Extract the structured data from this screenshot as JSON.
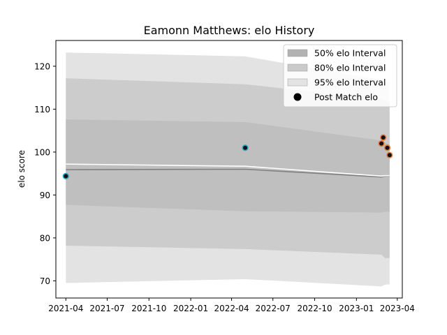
{
  "chart_data": {
    "type": "line",
    "title": "Eamonn Matthews: elo History",
    "xlabel": "",
    "ylabel": "elo score",
    "xlim": [
      "2021-03-10",
      "2023-04-12"
    ],
    "ylim": [
      66,
      126
    ],
    "x_ticks": [
      "2021-04",
      "2021-07",
      "2021-10",
      "2022-01",
      "2022-04",
      "2022-07",
      "2022-10",
      "2023-01",
      "2023-04"
    ],
    "y_ticks": [
      70,
      80,
      90,
      100,
      110,
      120
    ],
    "grid": false,
    "legend_position": "top-right",
    "intervals": [
      {
        "name": "95% elo Interval",
        "color": "#e3e3e3",
        "x": [
          "2021-04-01",
          "2022-05-01",
          "2023-02-25",
          "2023-03-05",
          "2023-03-15"
        ],
        "upper": [
          123.2,
          122.3,
          116.8,
          116.5,
          116.0
        ],
        "lower": [
          69.5,
          70.4,
          68.7,
          69.1,
          69.2
        ]
      },
      {
        "name": "80% elo Interval",
        "color": "#cccccc",
        "x": [
          "2021-04-01",
          "2022-05-01",
          "2023-02-25",
          "2023-03-05",
          "2023-03-15"
        ],
        "upper": [
          117.2,
          115.8,
          112.3,
          112.0,
          111.6
        ],
        "lower": [
          78.2,
          77.4,
          76.1,
          75.3,
          75.3
        ]
      },
      {
        "name": "50% elo Interval",
        "color": "#bfbfbf",
        "x": [
          "2021-04-01",
          "2022-05-01",
          "2023-02-25",
          "2023-03-05",
          "2023-03-15"
        ],
        "upper": [
          107.6,
          107.0,
          102.7,
          102.2,
          101.8
        ],
        "lower": [
          87.7,
          86.2,
          85.9,
          86.1,
          86.1
        ]
      }
    ],
    "mean_line": {
      "x": [
        "2021-04-01",
        "2022-05-01",
        "2023-02-25",
        "2023-03-05",
        "2023-03-15"
      ],
      "y": [
        95.9,
        96.0,
        94.2,
        94.4,
        94.4
      ],
      "color": "#808080"
    },
    "white_line": {
      "x": [
        "2021-04-01",
        "2022-05-01",
        "2023-02-25",
        "2023-03-05",
        "2023-03-15"
      ],
      "y": [
        97.2,
        96.7,
        94.4,
        94.5,
        94.5
      ],
      "color": "#ffffff"
    },
    "series": [
      {
        "name": "Post Match elo",
        "color": "#111111",
        "points": [
          {
            "x": "2021-04-01",
            "y": 94.4,
            "edge": "#2aa7c9"
          },
          {
            "x": "2022-05-01",
            "y": 101.0,
            "edge": "#2aa7c9"
          },
          {
            "x": "2023-02-25",
            "y": 102.0,
            "edge": "#e07a3f"
          },
          {
            "x": "2023-03-01",
            "y": 103.4,
            "edge": "#e07a3f"
          },
          {
            "x": "2023-03-10",
            "y": 101.0,
            "edge": "#e07a3f"
          },
          {
            "x": "2023-03-15",
            "y": 99.3,
            "edge": "#e07a3f"
          }
        ]
      }
    ],
    "legend": [
      {
        "label": "50% elo Interval",
        "kind": "patch",
        "color": "#b2b2b2"
      },
      {
        "label": "80% elo Interval",
        "kind": "patch",
        "color": "#cacaca"
      },
      {
        "label": "95% elo Interval",
        "kind": "patch",
        "color": "#e3e3e3"
      },
      {
        "label": "Post Match elo",
        "kind": "marker",
        "color": "#000000"
      }
    ]
  }
}
